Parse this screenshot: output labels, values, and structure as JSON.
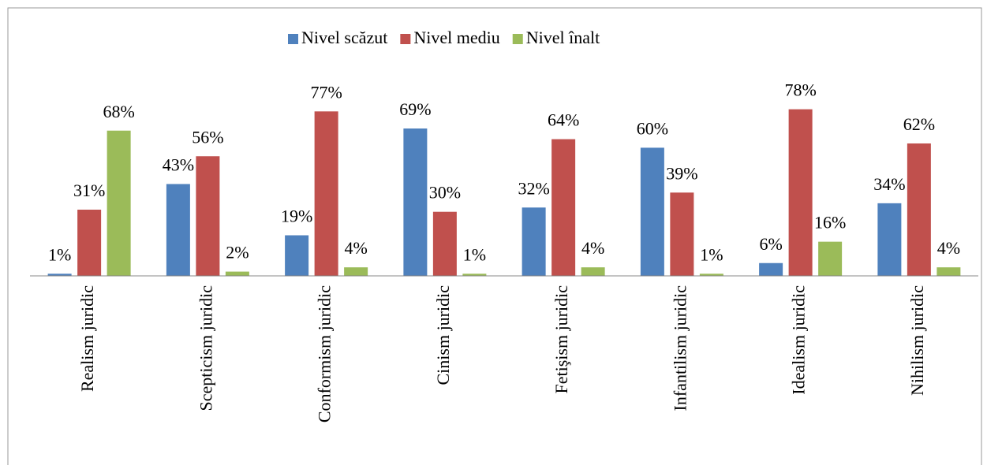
{
  "chart_data": {
    "type": "bar",
    "categories": [
      "Realism juridic",
      "Scepticism juridic",
      "Conformism juridic",
      "Cinism juridic",
      "Fetişism juridic",
      "Infantilism juridic",
      "Idealism juridic",
      "Nihilism juridic"
    ],
    "series": [
      {
        "name": "Nivel scăzut",
        "color": "#4f81bd",
        "values": [
          1,
          43,
          19,
          69,
          32,
          60,
          6,
          34
        ],
        "value_labels": [
          "1%",
          "43%",
          "19%",
          "69%",
          "32%",
          "60%",
          "6%",
          "34%"
        ]
      },
      {
        "name": "Nivel mediu",
        "color": "#c0504d",
        "values": [
          31,
          56,
          77,
          30,
          64,
          39,
          78,
          62
        ],
        "value_labels": [
          "31%",
          "56%",
          "77%",
          "30%",
          "64%",
          "39%",
          "78%",
          "62%"
        ]
      },
      {
        "name": "Nivel înalt",
        "color": "#9bbb59",
        "values": [
          68,
          2,
          4,
          1,
          4,
          1,
          16,
          4
        ],
        "value_labels": [
          "68%",
          "2%",
          "4%",
          "1%",
          "4%",
          "1%",
          "16%",
          "4%"
        ]
      }
    ],
    "ylim": [
      0,
      100
    ],
    "legend": "top"
  }
}
